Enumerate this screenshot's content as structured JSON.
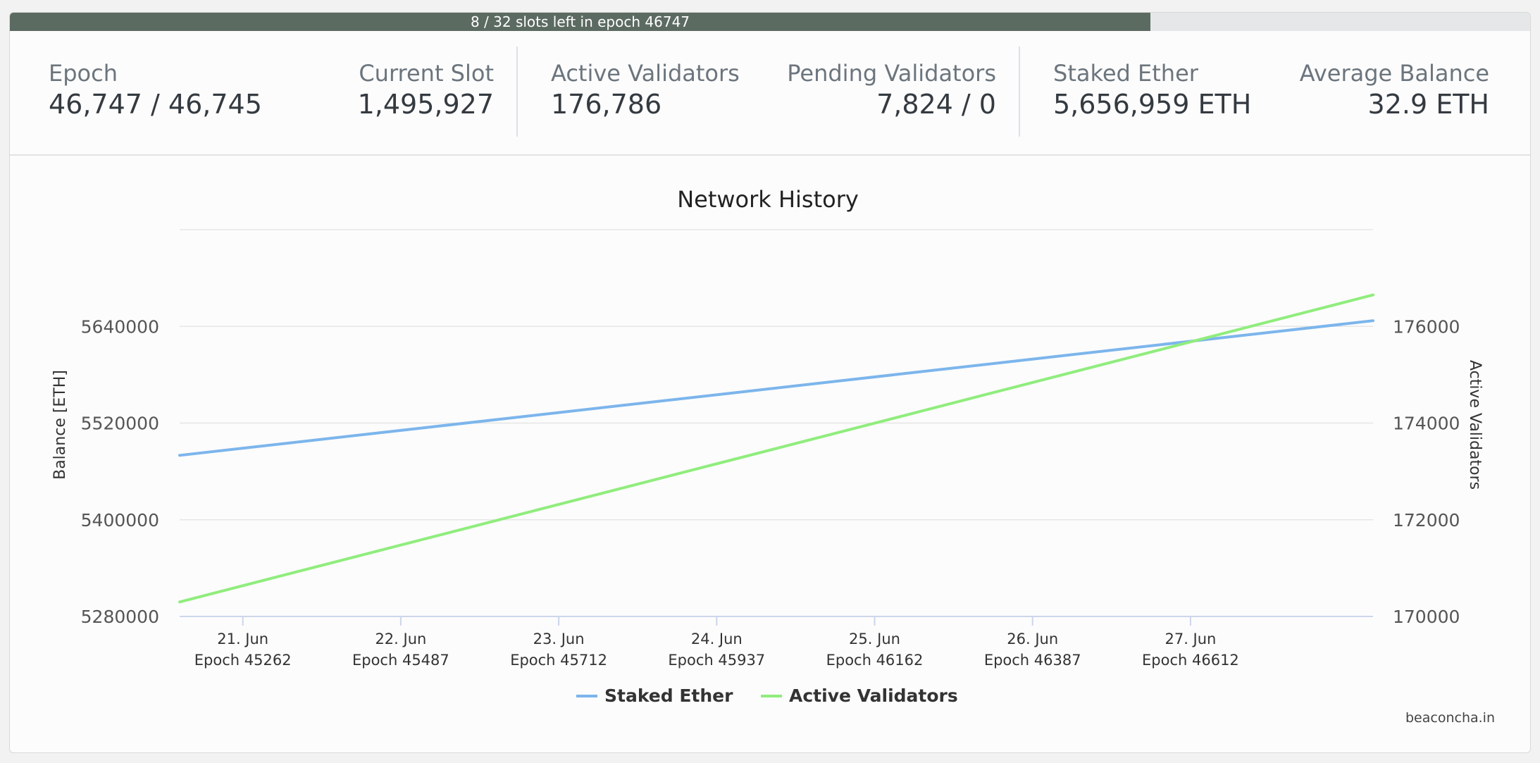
{
  "progress": {
    "text": "8 / 32 slots left in epoch 46747",
    "fraction_elapsed": 0.75
  },
  "stats": {
    "epoch": {
      "label": "Epoch",
      "value": "46,747 / 46,745"
    },
    "current_slot": {
      "label": "Current Slot",
      "value": "1,495,927"
    },
    "active_validators": {
      "label": "Active Validators",
      "value": "176,786"
    },
    "pending_validators": {
      "label": "Pending Validators",
      "value": "7,824 / 0"
    },
    "staked_ether": {
      "label": "Staked Ether",
      "value": "5,656,959 ETH"
    },
    "average_balance": {
      "label": "Average Balance",
      "value": "32.9 ETH"
    }
  },
  "credit": "beaconcha.in",
  "colors": {
    "progress_fill": "#5c6b62",
    "staked_ether": "#7cb5ec",
    "active_validators": "#90ed7d"
  },
  "chart_data": {
    "type": "line",
    "title": "Network History",
    "y_left_label": "Balance [ETH]",
    "y_right_label": "Active Validators",
    "x_ticks": [
      {
        "date": "21. Jun",
        "epoch": "Epoch 45262",
        "x": 45262
      },
      {
        "date": "22. Jun",
        "epoch": "Epoch 45487",
        "x": 45487
      },
      {
        "date": "23. Jun",
        "epoch": "Epoch 45712",
        "x": 45712
      },
      {
        "date": "24. Jun",
        "epoch": "Epoch 45937",
        "x": 45937
      },
      {
        "date": "25. Jun",
        "epoch": "Epoch 46162",
        "x": 46162
      },
      {
        "date": "26. Jun",
        "epoch": "Epoch 46387",
        "x": 46387
      },
      {
        "date": "27. Jun",
        "epoch": "Epoch 46612",
        "x": 46612
      }
    ],
    "x_range": [
      45172,
      46872
    ],
    "y_left_ticks": [
      5280000,
      5400000,
      5520000,
      5640000
    ],
    "y_left_range": [
      5280000,
      5760000
    ],
    "y_right_ticks": [
      170000,
      172000,
      174000,
      176000
    ],
    "y_right_range": [
      170000,
      178000
    ],
    "grid": true,
    "legend_position": "bottom-center",
    "series": [
      {
        "name": "Staked Ether",
        "axis": "left",
        "color": "#7cb5ec",
        "points": [
          [
            45172,
            5480000
          ],
          [
            46872,
            5647000
          ]
        ]
      },
      {
        "name": "Active Validators",
        "axis": "right",
        "color": "#90ed7d",
        "points": [
          [
            45172,
            170300
          ],
          [
            46872,
            176650
          ]
        ]
      }
    ]
  }
}
